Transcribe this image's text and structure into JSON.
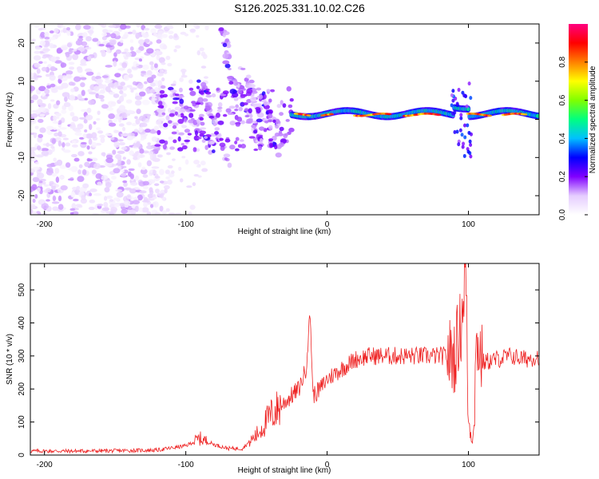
{
  "title": "S126.2025.331.10.02.C26",
  "chart_data": [
    {
      "type": "heatmap",
      "name": "spectrogram",
      "xlabel": "Height of straight line (km)",
      "ylabel": "Frequency (Hz)",
      "xlim": [
        -210,
        150
      ],
      "ylim": [
        -25,
        25
      ],
      "xticks": [
        -200,
        -100,
        0,
        100
      ],
      "yticks": [
        -20,
        -10,
        0,
        10,
        20
      ],
      "colorbar": {
        "label": "Normalized spectral amplitude",
        "range": [
          0,
          1
        ],
        "ticks": [
          0.0,
          0.2,
          0.4,
          0.6,
          0.8
        ],
        "tick_labels": [
          "0.0",
          "0.2",
          "0.4",
          "0.6",
          "0.8"
        ],
        "stops": [
          "#ffffff",
          "#e5ccff",
          "#8000ff",
          "#0000ff",
          "#00c0ff",
          "#00ff80",
          "#80ff00",
          "#ffff00",
          "#ff8000",
          "#ff0000",
          "#ff0080"
        ]
      },
      "features": [
        {
          "desc": "diffuse noise",
          "x": [
            -210,
            -120
          ],
          "freq": [
            -25,
            25
          ],
          "amplitude": 0.1
        },
        {
          "desc": "streaks",
          "x": [
            -120,
            -25
          ],
          "freq": [
            -15,
            15
          ],
          "amplitude": 0.25
        },
        {
          "desc": "narrow line",
          "x": [
            -25,
            150
          ],
          "freq": [
            0,
            3
          ],
          "amplitude": 0.95
        }
      ]
    },
    {
      "type": "line",
      "name": "snr",
      "xlabel": "Height of straight line (km)",
      "ylabel": "SNR (10 * v/v)",
      "xlim": [
        -210,
        150
      ],
      "ylim": [
        0,
        580
      ],
      "xticks": [
        -200,
        -100,
        0,
        100
      ],
      "yticks": [
        0,
        100,
        200,
        300,
        400,
        500
      ],
      "color": "#ee2222",
      "series": [
        {
          "name": "SNR",
          "x": [
            -210,
            -180,
            -150,
            -120,
            -100,
            -90,
            -80,
            -70,
            -60,
            -50,
            -40,
            -30,
            -20,
            -15,
            -12,
            -10,
            -5,
            0,
            10,
            20,
            30,
            40,
            60,
            80,
            90,
            95,
            98,
            100,
            103,
            106,
            110,
            120,
            130,
            140,
            150
          ],
          "values": [
            12,
            12,
            13,
            15,
            28,
            50,
            32,
            20,
            20,
            60,
            120,
            160,
            200,
            260,
            430,
            180,
            200,
            230,
            260,
            290,
            300,
            300,
            300,
            300,
            300,
            400,
            580,
            100,
            40,
            350,
            280,
            290,
            300,
            290,
            300
          ]
        }
      ]
    }
  ]
}
